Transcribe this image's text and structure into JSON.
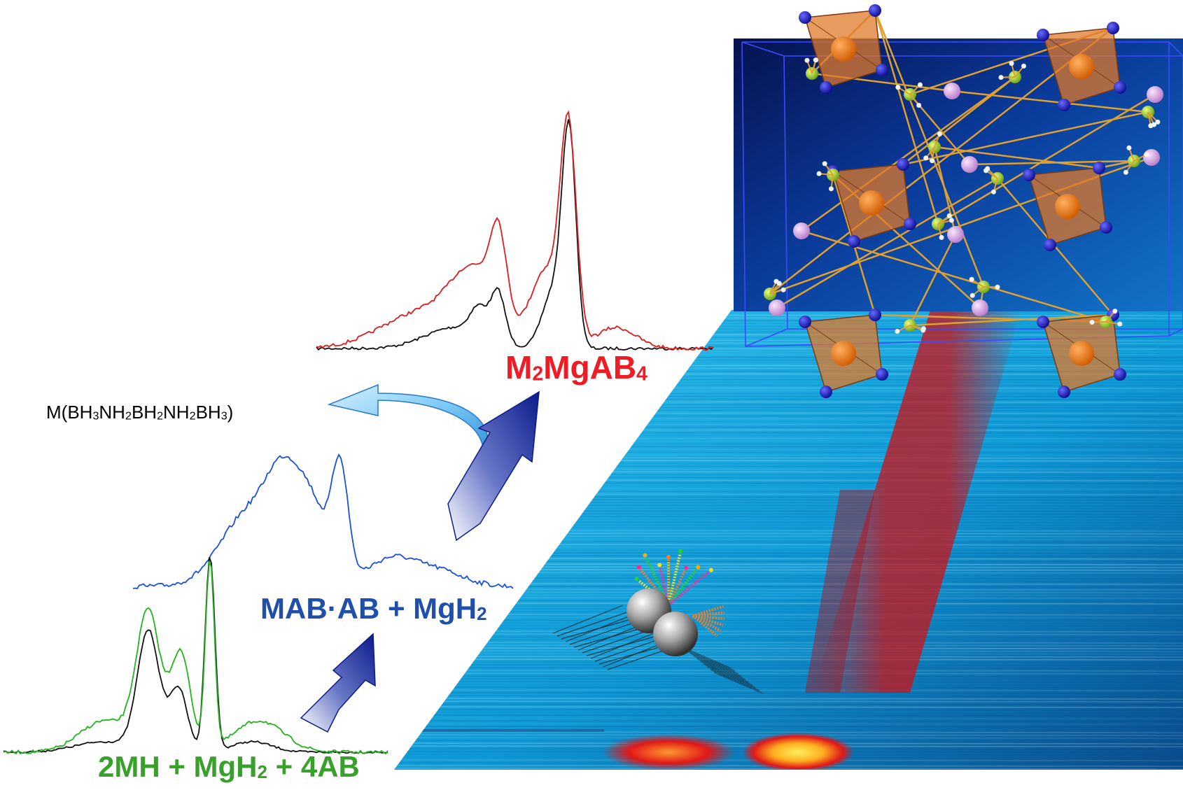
{
  "labels": {
    "top": {
      "parts": [
        "M",
        "2",
        "MgAB",
        "4"
      ],
      "color": "#ee1c24"
    },
    "middle": {
      "parts": [
        "MAB·AB + MgH",
        "2"
      ],
      "color": "#1f4fa8"
    },
    "bottom": {
      "parts": [
        "2MH + MgH",
        "2",
        " + 4AB"
      ],
      "color": "#3aa02c"
    },
    "formula": {
      "parts": [
        "M(BH",
        "3",
        "NH",
        "2",
        "BH",
        "2",
        "NH",
        "2",
        "BH",
        "3",
        ")"
      ],
      "color": "#000000"
    }
  },
  "colors": {
    "spectrum_red": "#e11b1b",
    "spectrum_black": "#111111",
    "spectrum_blue": "#1a4fe0",
    "spectrum_green": "#22b41e",
    "arrow_dark": "#0b1b8a",
    "arrow_light": "#4aa8e8",
    "crystal_bg": "#0a2a80",
    "heatmap_bg": "#0fb4e8",
    "heat_red": "#c8141a",
    "heat_yellow": "#ffe040",
    "tetrahedron": "#e07a2a",
    "atom_blue": "#1a1ad0",
    "atom_green": "#9ad420",
    "atom_pink": "#d9a6e6",
    "bond": "#d69a2a"
  }
}
